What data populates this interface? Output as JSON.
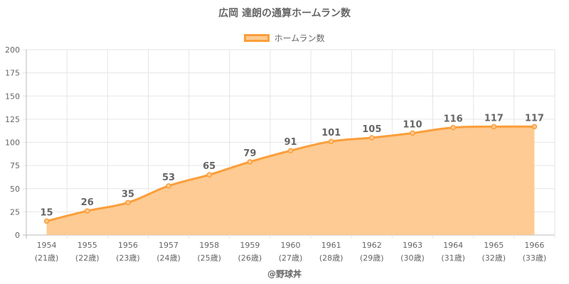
{
  "chart_data": {
    "type": "area",
    "title": "広岡 達朗の通算ホームラン数",
    "series": [
      {
        "name": "ホームラン数",
        "values": [
          15,
          26,
          35,
          53,
          65,
          79,
          91,
          101,
          105,
          110,
          116,
          117,
          117
        ]
      }
    ],
    "categories": [
      "1954",
      "1955",
      "1956",
      "1957",
      "1958",
      "1959",
      "1960",
      "1961",
      "1962",
      "1963",
      "1964",
      "1965",
      "1966"
    ],
    "ages": [
      "(21歳)",
      "(22歳)",
      "(23歳)",
      "(24歳)",
      "(25歳)",
      "(26歳)",
      "(27歳)",
      "(28歳)",
      "(29歳)",
      "(30歳)",
      "(31歳)",
      "(32歳)",
      "(33歳)"
    ],
    "yticks": [
      0,
      25,
      50,
      75,
      100,
      125,
      150,
      175,
      200
    ],
    "ylim": [
      0,
      200
    ],
    "grid": true,
    "legend_position": "top",
    "colors": {
      "line": "#fb9e3a",
      "fill": "#fdcb93"
    }
  },
  "watermark": "@野球丼"
}
